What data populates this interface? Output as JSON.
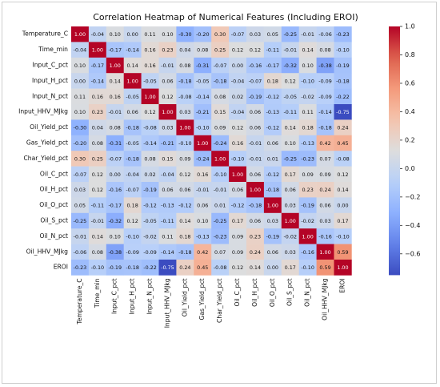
{
  "chart_data": {
    "type": "heatmap",
    "title": "Correlation Heatmap of Numerical Features (Including EROI)",
    "labels": [
      "Temperature_C",
      "Time_min",
      "Input_C_pct",
      "Input_H_pct",
      "Input_N_pct",
      "Input_HHV_MJkg",
      "Oil_Yield_pct",
      "Gas_Yield_pct",
      "Char_Yield_pct",
      "Oil_C_pct",
      "Oil_H_pct",
      "Oil_O_pct",
      "Oil_S_pct",
      "Oil_N_pct",
      "Oil_HHV_MJkg",
      "EROI"
    ],
    "matrix": [
      [
        1.0,
        -0.04,
        0.1,
        -0.0,
        0.11,
        0.1,
        -0.3,
        -0.2,
        0.3,
        -0.07,
        0.03,
        0.05,
        -0.25,
        -0.01,
        -0.06,
        -0.23
      ],
      [
        -0.04,
        1.0,
        -0.17,
        -0.14,
        0.16,
        0.23,
        0.04,
        0.08,
        0.25,
        0.12,
        0.12,
        -0.11,
        -0.01,
        0.14,
        0.08,
        -0.1
      ],
      [
        0.1,
        -0.17,
        1.0,
        0.14,
        0.16,
        -0.01,
        0.08,
        -0.31,
        -0.07,
        -0.0,
        -0.16,
        -0.17,
        -0.32,
        0.1,
        -0.38,
        -0.19
      ],
      [
        -0.0,
        -0.14,
        0.14,
        1.0,
        -0.05,
        0.06,
        -0.18,
        -0.05,
        -0.18,
        -0.04,
        -0.07,
        0.18,
        0.12,
        -0.1,
        -0.09,
        -0.18
      ],
      [
        0.11,
        0.16,
        0.16,
        -0.05,
        1.0,
        0.12,
        -0.08,
        -0.14,
        0.08,
        0.02,
        -0.19,
        -0.12,
        -0.05,
        -0.02,
        -0.09,
        -0.22
      ],
      [
        0.1,
        0.23,
        -0.01,
        0.06,
        0.12,
        1.0,
        0.03,
        -0.21,
        0.15,
        -0.04,
        0.06,
        -0.13,
        -0.11,
        0.11,
        -0.14,
        -0.75
      ],
      [
        -0.3,
        0.04,
        0.08,
        -0.18,
        -0.08,
        0.03,
        1.0,
        -0.1,
        0.09,
        0.12,
        0.06,
        -0.12,
        0.14,
        0.18,
        -0.18,
        0.24
      ],
      [
        -0.2,
        0.08,
        -0.31,
        -0.05,
        -0.14,
        -0.21,
        -0.1,
        1.0,
        -0.24,
        0.16,
        -0.01,
        0.06,
        0.1,
        -0.13,
        0.42,
        0.45
      ],
      [
        0.3,
        0.25,
        -0.07,
        -0.18,
        0.08,
        0.15,
        0.09,
        -0.24,
        1.0,
        -0.1,
        -0.01,
        0.01,
        -0.25,
        -0.23,
        0.07,
        -0.08
      ],
      [
        -0.07,
        0.12,
        -0.0,
        -0.04,
        0.02,
        -0.04,
        0.12,
        0.16,
        -0.1,
        1.0,
        0.06,
        -0.12,
        0.17,
        0.09,
        0.09,
        0.12
      ],
      [
        0.03,
        0.12,
        -0.16,
        -0.07,
        -0.19,
        0.06,
        0.06,
        -0.01,
        -0.01,
        0.06,
        1.0,
        -0.18,
        0.06,
        0.23,
        0.24,
        0.14
      ],
      [
        0.05,
        -0.11,
        -0.17,
        0.18,
        -0.12,
        -0.13,
        -0.12,
        0.06,
        0.01,
        -0.12,
        -0.18,
        1.0,
        0.03,
        -0.19,
        0.06,
        -0.0
      ],
      [
        -0.25,
        -0.01,
        -0.32,
        0.12,
        -0.05,
        -0.11,
        0.14,
        0.1,
        -0.25,
        0.17,
        0.06,
        0.03,
        1.0,
        -0.02,
        0.03,
        0.17
      ],
      [
        -0.01,
        0.14,
        0.1,
        -0.1,
        -0.02,
        0.11,
        0.18,
        -0.13,
        -0.23,
        0.09,
        0.23,
        -0.19,
        -0.02,
        1.0,
        -0.16,
        -0.1
      ],
      [
        -0.06,
        0.08,
        -0.38,
        -0.09,
        -0.09,
        -0.14,
        -0.18,
        0.42,
        0.07,
        0.09,
        0.24,
        0.06,
        0.03,
        -0.16,
        1.0,
        0.59
      ],
      [
        -0.23,
        -0.1,
        -0.19,
        -0.18,
        -0.22,
        -0.75,
        0.24,
        0.45,
        -0.08,
        0.12,
        0.14,
        -0.0,
        0.17,
        -0.1,
        0.59,
        1.0
      ]
    ],
    "colorbar": {
      "colormap": "coolwarm",
      "vmin": -0.75,
      "vmax": 1.0,
      "ticks": [
        1.0,
        0.8,
        0.6,
        0.4,
        0.2,
        0.0,
        -0.2,
        -0.4,
        -0.6
      ],
      "tick_labels": [
        "1.0",
        "0.8",
        "0.6",
        "0.4",
        "0.2",
        "0.0",
        "−0.2",
        "−0.4",
        "−0.6"
      ]
    },
    "colors": {
      "low": "#3b4cc0",
      "mid": "#dddddd",
      "high": "#b40426"
    }
  }
}
